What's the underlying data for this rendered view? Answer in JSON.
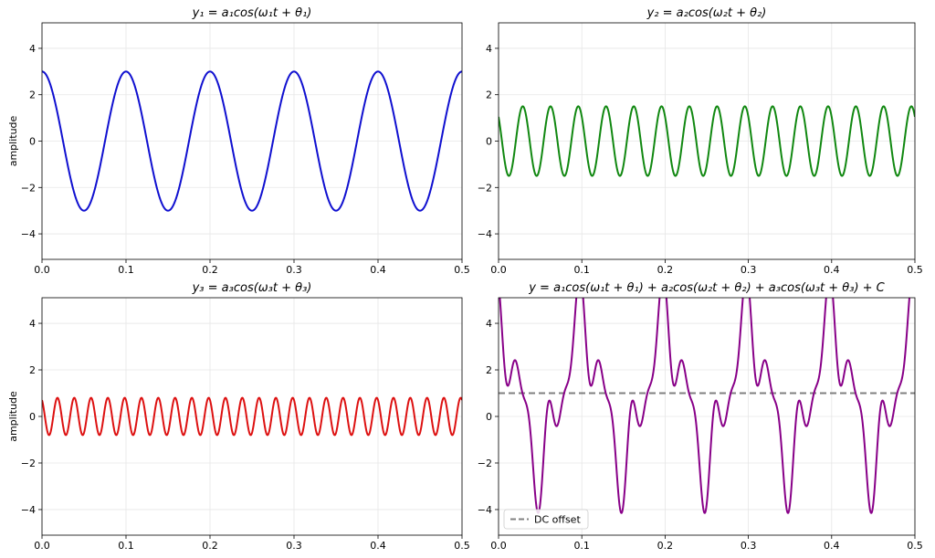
{
  "chart_data": [
    {
      "type": "line",
      "title": "y₁ = a₁cos(ω₁t + θ₁)",
      "xlabel": "",
      "ylabel": "amplitude",
      "xlim": [
        0,
        0.5
      ],
      "ylim": [
        -5.1,
        5.1
      ],
      "xticks": [
        "0.0",
        "0.1",
        "0.2",
        "0.3",
        "0.4",
        "0.5"
      ],
      "yticks": [
        "−4",
        "−2",
        "0",
        "2",
        "4"
      ],
      "grid": true,
      "series": [
        {
          "color": "#1010d0",
          "components": [
            {
              "amplitude": 3,
              "frequency_hz": 10,
              "phase_rad": 0
            }
          ],
          "offset": 0
        }
      ]
    },
    {
      "type": "line",
      "title": "y₂ = a₂cos(ω₂t + θ₂)",
      "xlabel": "",
      "ylabel": "",
      "xlim": [
        0,
        0.5
      ],
      "ylim": [
        -5.1,
        5.1
      ],
      "xticks": [
        "0.0",
        "0.1",
        "0.2",
        "0.3",
        "0.4",
        "0.5"
      ],
      "yticks": [
        "−4",
        "−2",
        "0",
        "2",
        "4"
      ],
      "grid": true,
      "series": [
        {
          "color": "#118811",
          "components": [
            {
              "amplitude": 1.5,
              "frequency_hz": 30,
              "phase_rad": 0.8
            }
          ],
          "offset": 0
        }
      ]
    },
    {
      "type": "line",
      "title": "y₃ = a₃cos(ω₃t + θ₃)",
      "xlabel": "",
      "ylabel": "amplitude",
      "xlim": [
        0,
        0.5
      ],
      "ylim": [
        -5.1,
        5.1
      ],
      "xticks": [
        "0.0",
        "0.1",
        "0.2",
        "0.3",
        "0.4",
        "0.5"
      ],
      "yticks": [
        "−4",
        "−2",
        "0",
        "2",
        "4"
      ],
      "grid": true,
      "series": [
        {
          "color": "#dd1111",
          "components": [
            {
              "amplitude": 0.8,
              "frequency_hz": 50,
              "phase_rad": 0.5
            }
          ],
          "offset": 0
        }
      ]
    },
    {
      "type": "line",
      "title": "y = a₁cos(ω₁t + θ₁) + a₂cos(ω₂t + θ₂) + a₃cos(ω₃t + θ₃) + C",
      "xlabel": "",
      "ylabel": "",
      "xlim": [
        0,
        0.5
      ],
      "ylim": [
        -5.1,
        5.1
      ],
      "xticks": [
        "0.0",
        "0.1",
        "0.2",
        "0.3",
        "0.4",
        "0.5"
      ],
      "yticks": [
        "−4",
        "−2",
        "0",
        "2",
        "4"
      ],
      "grid": true,
      "series": [
        {
          "color": "#880088",
          "components": [
            {
              "amplitude": 3,
              "frequency_hz": 10,
              "phase_rad": 0
            },
            {
              "amplitude": 1.5,
              "frequency_hz": 30,
              "phase_rad": 0.8
            },
            {
              "amplitude": 0.8,
              "frequency_hz": 50,
              "phase_rad": 0.5
            }
          ],
          "offset": 1
        }
      ],
      "reference_lines": [
        {
          "name": "DC offset",
          "y": 1,
          "color": "#808080",
          "style": "dashed"
        }
      ],
      "legend": {
        "placement": "lower-left",
        "entries": [
          "DC offset"
        ]
      }
    }
  ]
}
